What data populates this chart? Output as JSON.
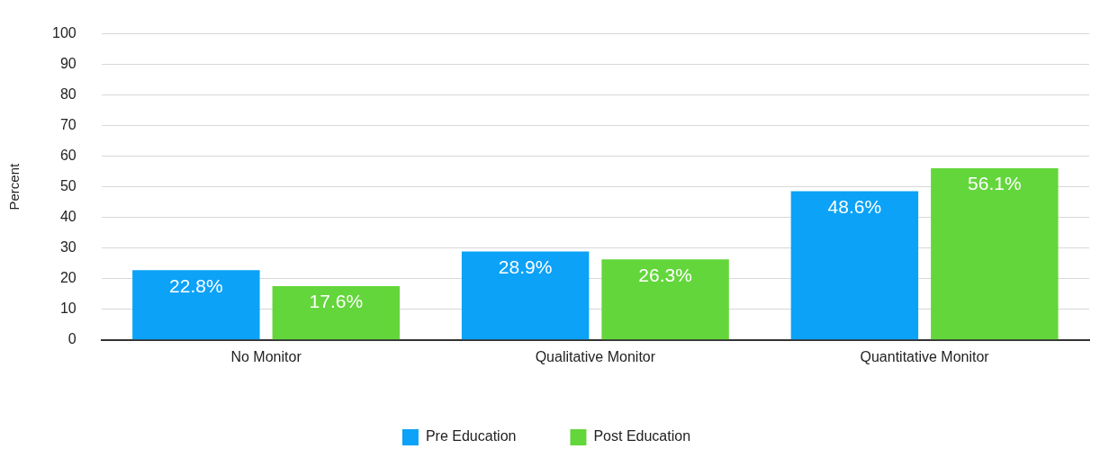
{
  "chart_data": {
    "type": "bar",
    "ylabel": "Percent",
    "categories": [
      "No Monitor",
      "Qualitative Monitor",
      "Quantitative Monitor"
    ],
    "series": [
      {
        "name": "Pre Education",
        "color": "#0ba2f7",
        "values": [
          22.8,
          28.9,
          48.6
        ],
        "value_labels": [
          "22.8%",
          "28.9%",
          "48.6%"
        ]
      },
      {
        "name": "Post Education",
        "color": "#63d63b",
        "values": [
          17.6,
          26.3,
          56.1
        ],
        "value_labels": [
          "17.6%",
          "26.3%",
          "56.1%"
        ]
      }
    ],
    "ylim": [
      0,
      100
    ],
    "yticks": [
      0,
      10,
      20,
      30,
      40,
      50,
      60,
      70,
      80,
      90,
      100
    ],
    "grid": "y",
    "legend": "bottom"
  }
}
